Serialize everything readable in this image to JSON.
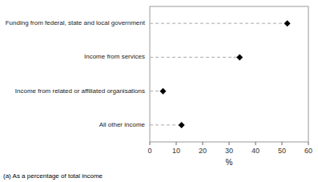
{
  "chart_data": {
    "type": "lollipop",
    "orientation": "horizontal",
    "categories": [
      "Funding from federal, state and local government",
      "Income from services",
      "Income from related or affiliated organisations",
      "All other income"
    ],
    "values": [
      52,
      34,
      5,
      12
    ],
    "xlim": [
      0,
      60
    ],
    "xticks": [
      0,
      10,
      20,
      30,
      40,
      50,
      60
    ],
    "xlabel": "%",
    "annotations": [
      "(a) As a percentage of total income"
    ],
    "color": "#000000",
    "marker": "diamond",
    "line_style": "dashed",
    "grid": false
  }
}
